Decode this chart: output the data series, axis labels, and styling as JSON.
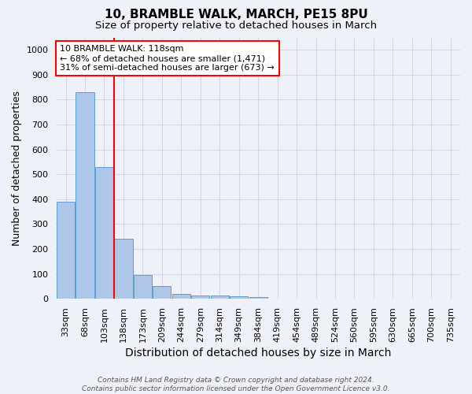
{
  "title1": "10, BRAMBLE WALK, MARCH, PE15 8PU",
  "title2": "Size of property relative to detached houses in March",
  "xlabel": "Distribution of detached houses by size in March",
  "ylabel": "Number of detached properties",
  "bar_labels": [
    "33sqm",
    "68sqm",
    "103sqm",
    "138sqm",
    "173sqm",
    "209sqm",
    "244sqm",
    "279sqm",
    "314sqm",
    "349sqm",
    "384sqm",
    "419sqm",
    "454sqm",
    "489sqm",
    "524sqm",
    "560sqm",
    "595sqm",
    "630sqm",
    "665sqm",
    "700sqm",
    "735sqm"
  ],
  "bar_values": [
    390,
    830,
    530,
    240,
    96,
    50,
    20,
    14,
    13,
    9,
    7,
    0,
    0,
    0,
    0,
    0,
    0,
    0,
    0,
    0,
    0
  ],
  "bar_color": "#aec6e8",
  "bar_edge_color": "#5a9fd4",
  "vline_x": 2.5,
  "annotation_text": "10 BRAMBLE WALK: 118sqm\n← 68% of detached houses are smaller (1,471)\n31% of semi-detached houses are larger (673) →",
  "annotation_box_color": "white",
  "annotation_box_edge_color": "red",
  "vline_color": "red",
  "ylim": [
    0,
    1050
  ],
  "yticks": [
    0,
    100,
    200,
    300,
    400,
    500,
    600,
    700,
    800,
    900,
    1000
  ],
  "grid_color": "#d0d8e8",
  "bg_color": "#eef2f8",
  "footnote": "Contains HM Land Registry data © Crown copyright and database right 2024.\nContains public sector information licensed under the Open Government Licence v3.0.",
  "title_fontsize": 11,
  "subtitle_fontsize": 9.5,
  "xlabel_fontsize": 10,
  "ylabel_fontsize": 9,
  "annot_fontsize": 8,
  "tick_fontsize": 8,
  "footnote_fontsize": 6.5
}
